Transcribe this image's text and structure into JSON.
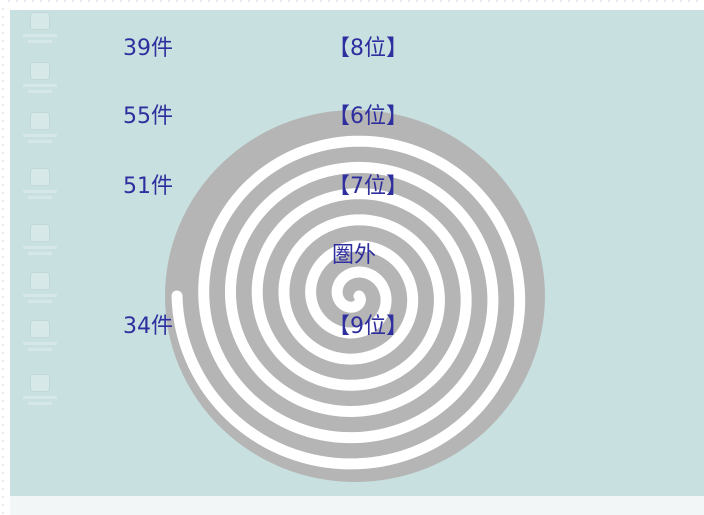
{
  "rows": [
    {
      "count": "39件",
      "rank": "【8位】"
    },
    {
      "count": "55件",
      "rank": "【6位】"
    },
    {
      "count": "51件",
      "rank": "【7位】"
    },
    {
      "count": "",
      "rank": "圏外"
    },
    {
      "count": "34件",
      "rank": "【9位】"
    }
  ],
  "colors": {
    "desktop_bg": "#c8e1e0",
    "spiral_gray": "#b5b5b5",
    "spiral_white": "#ffffff",
    "label_text": "#2e2e9e"
  }
}
